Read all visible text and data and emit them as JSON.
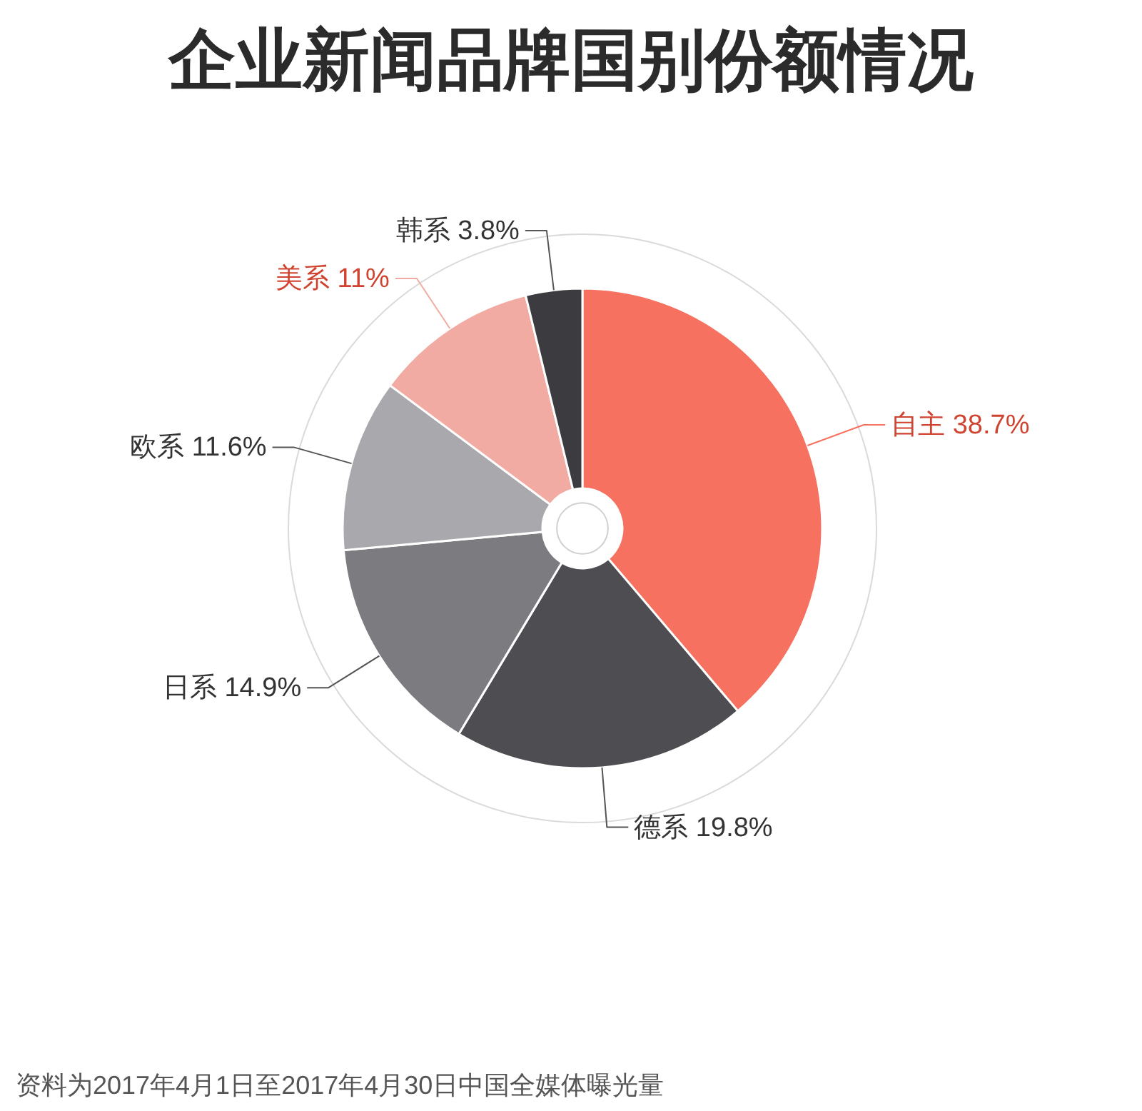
{
  "chart_data": {
    "type": "donut",
    "title": "企业新闻品牌国别份额情况",
    "categories": [
      "自主",
      "德系",
      "日系",
      "欧系",
      "美系",
      "韩系"
    ],
    "values": [
      38.7,
      19.8,
      14.9,
      11.6,
      11,
      3.8
    ],
    "colors": [
      "#f6715f",
      "#4d4d52",
      "#7c7c80",
      "#a9a9ad",
      "#f2aba2",
      "#3c3c40"
    ],
    "value_labels": [
      "38.7%",
      "19.8%",
      "14.9%",
      "11.6%",
      "11%",
      "3.8%"
    ],
    "annotations": [
      "资料为2017年4月1日至2017年4月30日中国全媒体曝光量"
    ]
  }
}
